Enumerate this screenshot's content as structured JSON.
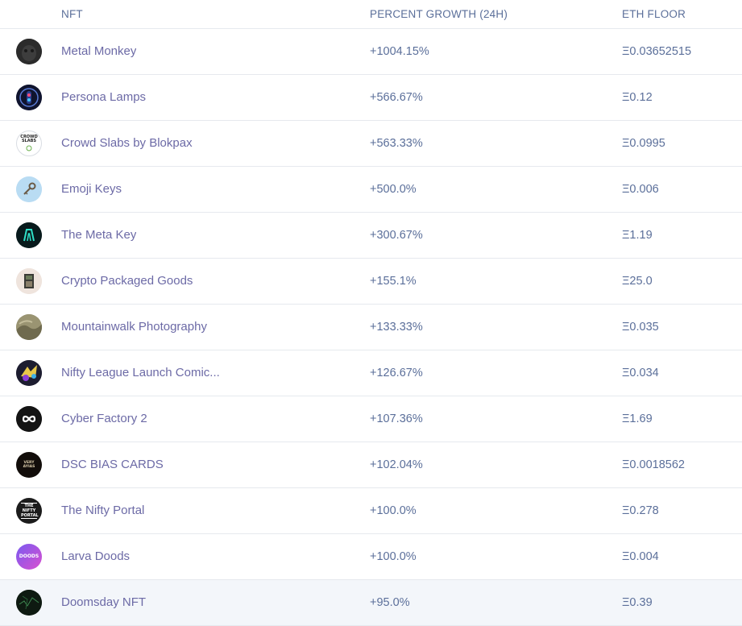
{
  "table": {
    "headers": {
      "nft": "NFT",
      "growth": "PERCENT GROWTH (24H)",
      "floor": "ETH FLOOR"
    },
    "rows": [
      {
        "name": "Metal Monkey",
        "growth": "+1004.15%",
        "floor": "Ξ0.03652515",
        "avatar": "metal-monkey-avatar",
        "color": "#2a2a2a"
      },
      {
        "name": "Persona Lamps",
        "growth": "+566.67%",
        "floor": "Ξ0.12",
        "avatar": "persona-lamps-avatar",
        "color": "#12163a"
      },
      {
        "name": "Crowd Slabs by Blokpax",
        "growth": "+563.33%",
        "floor": "Ξ0.0995",
        "avatar": "crowd-slabs-avatar",
        "color": "#ffffff",
        "avatar_text": "CROWD SLABS"
      },
      {
        "name": "Emoji Keys",
        "growth": "+500.0%",
        "floor": "Ξ0.006",
        "avatar": "emoji-keys-avatar",
        "color": "#b9dcf3"
      },
      {
        "name": "The Meta Key",
        "growth": "+300.67%",
        "floor": "Ξ1.19",
        "avatar": "meta-key-avatar",
        "color": "#0b1f22"
      },
      {
        "name": "Crypto Packaged Goods",
        "growth": "+155.1%",
        "floor": "Ξ25.0",
        "avatar": "crypto-packaged-goods-avatar",
        "color": "#e9ddd6"
      },
      {
        "name": "Mountainwalk Photography",
        "growth": "+133.33%",
        "floor": "Ξ0.035",
        "avatar": "mountainwalk-avatar",
        "color": "#8c8a6a"
      },
      {
        "name": "Nifty League Launch Comic...",
        "growth": "+126.67%",
        "floor": "Ξ0.034",
        "avatar": "nifty-league-avatar",
        "color": "#1b1b2e"
      },
      {
        "name": "Cyber Factory 2",
        "growth": "+107.36%",
        "floor": "Ξ1.69",
        "avatar": "cyber-factory-avatar",
        "color": "#111111"
      },
      {
        "name": "DSC BIAS CARDS",
        "growth": "+102.04%",
        "floor": "Ξ0.0018562",
        "avatar": "dsc-bias-cards-avatar",
        "color": "#120d0a",
        "avatar_text": "VERY AYIAS"
      },
      {
        "name": "The Nifty Portal",
        "growth": "+100.0%",
        "floor": "Ξ0.278",
        "avatar": "nifty-portal-avatar",
        "color": "#1c1c1c",
        "avatar_text": "THE NIFTY PORTAL"
      },
      {
        "name": "Larva Doods",
        "growth": "+100.0%",
        "floor": "Ξ0.004",
        "avatar": "larva-doods-avatar",
        "color": "#6b4fd8",
        "avatar_text": "DOODS"
      },
      {
        "name": "Doomsday NFT",
        "growth": "+95.0%",
        "floor": "Ξ0.39",
        "avatar": "doomsday-avatar",
        "color": "#0f1a12"
      }
    ]
  }
}
